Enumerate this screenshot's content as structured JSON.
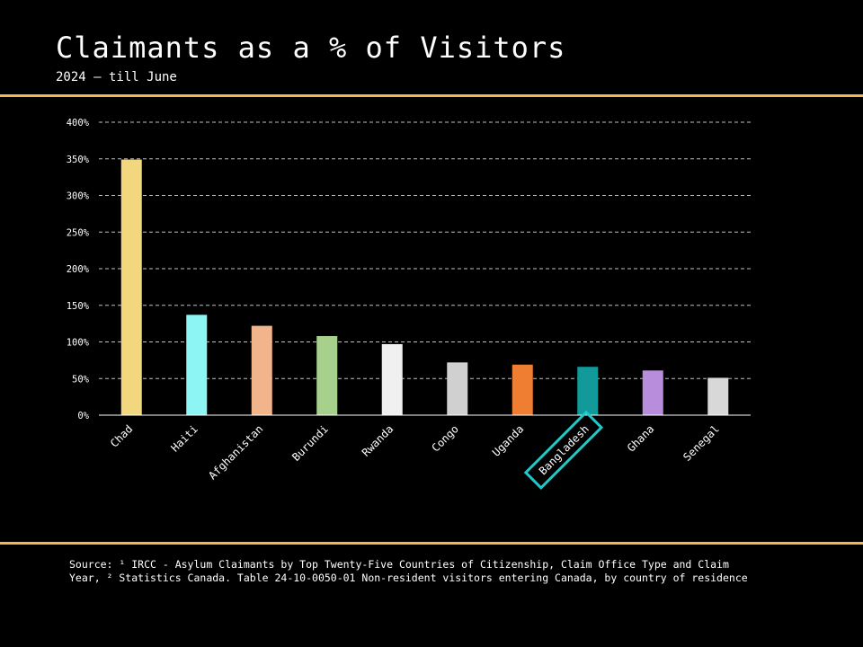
{
  "header": {
    "title": "Claimants as a % of Visitors",
    "subtitle": "2024 – till June"
  },
  "footer": {
    "source": "Source: ¹ IRCC - Asylum Claimants by Top Twenty-Five Countries of Citizenship, Claim Office Type and Claim Year, ² Statistics Canada. Table 24-10-0050-01  Non-resident visitors entering Canada, by country of residence"
  },
  "colors": {
    "accent_rule": "#f2b84b",
    "highlight_box": "#22c7c9",
    "gridline": "#bfbfbf"
  },
  "chart_data": {
    "type": "bar",
    "categories": [
      "Chad",
      "Haiti",
      "Afghanistan",
      "Burundi",
      "Rwanda",
      "Congo",
      "Uganda",
      "Bangladesh",
      "Ghana",
      "Senegal"
    ],
    "values": [
      349,
      137,
      122,
      108,
      97,
      72,
      69,
      66,
      61,
      51
    ],
    "unit": "%",
    "bar_colors": [
      "#f2d77e",
      "#8ef5f5",
      "#f2b48a",
      "#a7d08c",
      "#f0f0f0",
      "#d0d0d0",
      "#ef7d32",
      "#12999a",
      "#b88ddb",
      "#d8d8d8"
    ],
    "yticks": [
      "0%",
      "50%",
      "100%",
      "150%",
      "200%",
      "250%",
      "300%",
      "350%",
      "400%"
    ],
    "ylim": [
      0,
      400
    ],
    "grid": true,
    "grid_style": "dashed",
    "highlighted_category": "Bangladesh",
    "xlabel": "",
    "ylabel": ""
  }
}
